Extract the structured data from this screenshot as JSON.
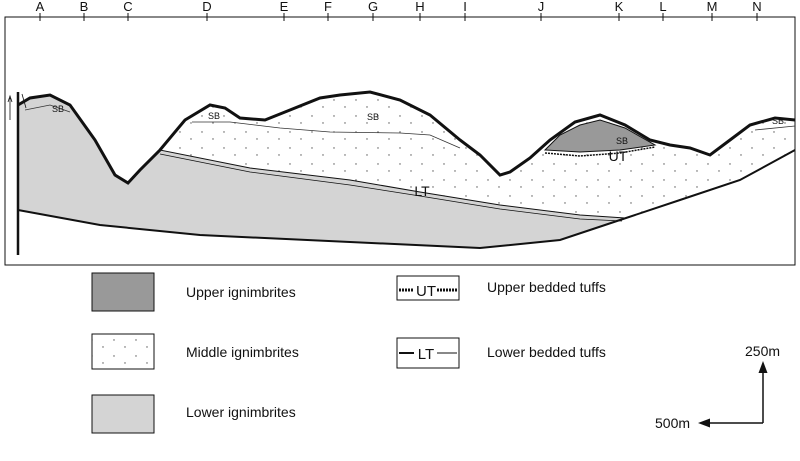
{
  "top_labels": [
    "A",
    "B",
    "C",
    "D",
    "E",
    "F",
    "G",
    "H",
    "I",
    "J",
    "K",
    "L",
    "M",
    "N"
  ],
  "section_labels": {
    "sb": [
      "SB",
      "SB",
      "SB",
      "SB",
      "SB"
    ],
    "upper_tuff": "UT",
    "lower_tuff": "LT"
  },
  "legend": [
    {
      "label": "Upper ignimbrites"
    },
    {
      "label": "Middle ignimbrites"
    },
    {
      "label": "Lower ignimbrites"
    },
    {
      "label": "Upper bedded tuffs",
      "symbol": "UT"
    },
    {
      "label": "Lower bedded tuffs",
      "symbol": "LT"
    }
  ],
  "scale": {
    "vertical": "250m",
    "horizontal": "500m"
  }
}
